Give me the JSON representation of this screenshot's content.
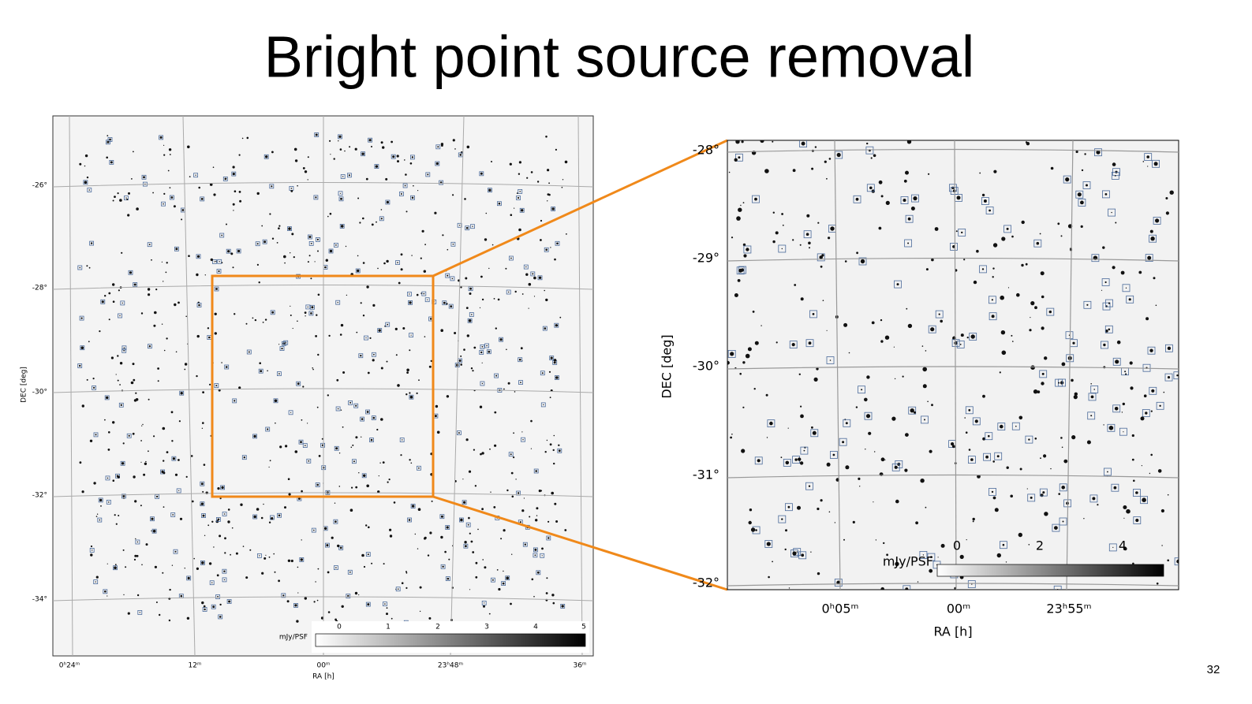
{
  "header": {
    "title": "Bright point source removal"
  },
  "left_panel": {
    "y_label": "DEC [deg]",
    "y_ticks": [
      "-26°",
      "-28°",
      "-30°",
      "-32°",
      "-34°"
    ],
    "x_label": "RA [h]",
    "x_ticks": [
      "0ʰ24ᵐ",
      "12ᵐ",
      "00ᵐ",
      "23ʰ48ᵐ",
      "36ᵐ"
    ],
    "colorbar": {
      "label": "mJy/PSF",
      "ticks": [
        "0",
        "1",
        "2",
        "3",
        "4",
        "5"
      ]
    }
  },
  "right_panel": {
    "y_label": "DEC [deg]",
    "y_ticks": [
      "-28°",
      "-29°",
      "-30°",
      "-31°",
      "-32°"
    ],
    "x_label": "RA [h]",
    "x_ticks": [
      "0ʰ05ᵐ",
      "00ᵐ",
      "23ʰ55ᵐ"
    ],
    "colorbar": {
      "label": "mJy/PSF",
      "ticks": [
        "0",
        "2",
        "4"
      ]
    }
  },
  "footer": {
    "page_number": "32"
  }
}
